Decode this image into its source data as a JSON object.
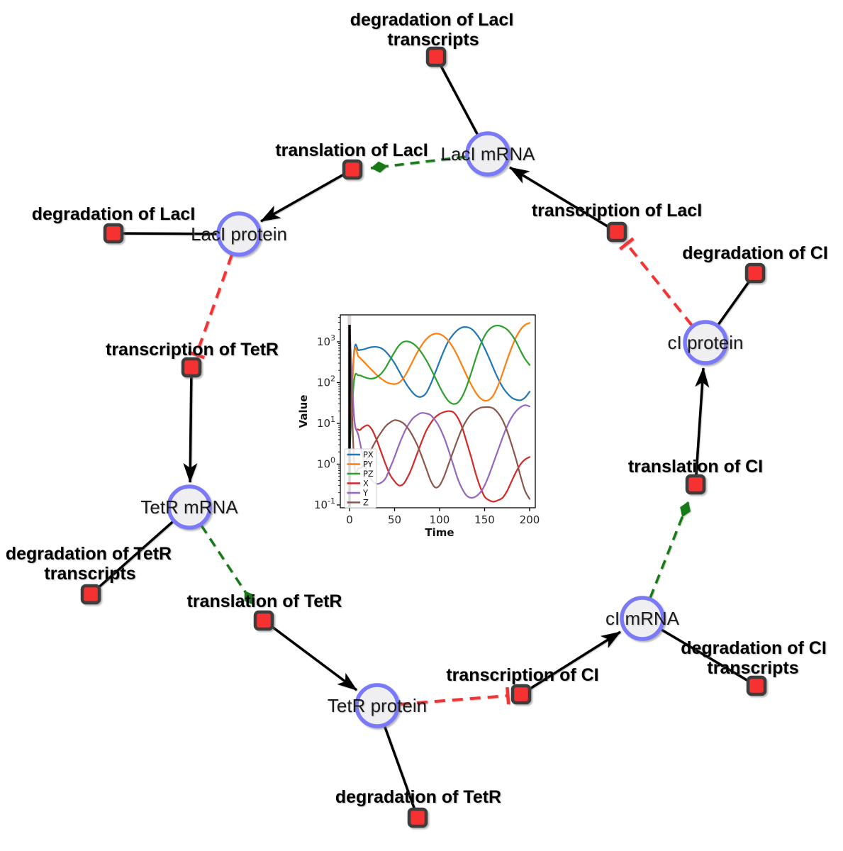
{
  "diagram": {
    "species": [
      {
        "id": "laci-mrna",
        "label": "LacI mRNA"
      },
      {
        "id": "laci-protein",
        "label": "LacI protein"
      },
      {
        "id": "ci-protein",
        "label": "cI protein"
      },
      {
        "id": "tetr-mrna",
        "label": "TetR mRNA"
      },
      {
        "id": "tetr-protein",
        "label": "TetR protein"
      },
      {
        "id": "ci-mrna",
        "label": "cI mRNA"
      }
    ],
    "reactions": [
      {
        "id": "degradation-laci-transcripts",
        "label_lines": [
          "degradation of LacI",
          "transcripts"
        ]
      },
      {
        "id": "translation-laci",
        "label_lines": [
          "translation of LacI"
        ]
      },
      {
        "id": "degradation-laci",
        "label_lines": [
          "degradation of LacI"
        ]
      },
      {
        "id": "transcription-laci",
        "label_lines": [
          "transcription of LacI"
        ]
      },
      {
        "id": "degradation-ci",
        "label_lines": [
          "degradation of CI"
        ]
      },
      {
        "id": "transcription-tetr",
        "label_lines": [
          "transcription of TetR"
        ]
      },
      {
        "id": "degradation-tetr-transcripts",
        "label_lines": [
          "degradation of TetR",
          "transcripts"
        ]
      },
      {
        "id": "translation-tetr",
        "label_lines": [
          "translation of TetR"
        ]
      },
      {
        "id": "degradation-tetr",
        "label_lines": [
          "degradation of TetR"
        ]
      },
      {
        "id": "transcription-ci",
        "label_lines": [
          "transcription of CI"
        ]
      },
      {
        "id": "degradation-ci-transcripts",
        "label_lines": [
          "degradation of CI",
          "transcripts"
        ]
      },
      {
        "id": "translation-ci",
        "label_lines": [
          "translation of CI"
        ]
      }
    ],
    "colors": {
      "species_fill": "#efeff1",
      "species_stroke": "#7a7af8",
      "reaction_fill": "#f53131",
      "reaction_stroke": "#3d3d3d",
      "product_edge": "#000000",
      "modifier_edge": "#177a17",
      "inhibition_edge": "#f63333"
    }
  },
  "chart_data": {
    "type": "line",
    "title": "",
    "xlabel": "Time",
    "ylabel": "Value",
    "y_scale": "log",
    "x_ticks": [
      0,
      50,
      100,
      150,
      200
    ],
    "y_tick_exponents": [
      -1,
      0,
      1,
      2,
      3
    ],
    "xlim": [
      -10,
      206
    ],
    "ylim": [
      0.085,
      3900
    ],
    "grid": false,
    "legend_position": "lower left",
    "t0_marker_line": true,
    "x": [
      0,
      5,
      10,
      15,
      20,
      25,
      30,
      35,
      40,
      45,
      50,
      55,
      60,
      65,
      70,
      75,
      80,
      85,
      90,
      95,
      100,
      105,
      110,
      115,
      120,
      125,
      130,
      135,
      140,
      145,
      150,
      155,
      160,
      165,
      170,
      175,
      180,
      185,
      190,
      195,
      200
    ],
    "series": [
      {
        "name": "PX",
        "color": "#1f77b4",
        "values": [
          2,
          550,
          620,
          650,
          700,
          745,
          750,
          700,
          580,
          430,
          300,
          190,
          120,
          80,
          57,
          46,
          45,
          55,
          90,
          170,
          330,
          620,
          1050,
          1500,
          1950,
          2250,
          2300,
          2100,
          1650,
          1150,
          700,
          400,
          220,
          125,
          78,
          55,
          43,
          38,
          37,
          43,
          60
        ]
      },
      {
        "name": "PY",
        "color": "#ff7f0e",
        "values": [
          2,
          480,
          430,
          340,
          260,
          200,
          155,
          125,
          105,
          95,
          92,
          100,
          130,
          200,
          330,
          540,
          820,
          1150,
          1430,
          1580,
          1550,
          1350,
          1050,
          720,
          450,
          260,
          150,
          90,
          58,
          42,
          36,
          38,
          50,
          85,
          170,
          360,
          720,
          1300,
          2000,
          2600,
          2900
        ]
      },
      {
        "name": "PZ",
        "color": "#2ca02c",
        "values": [
          2,
          110,
          150,
          140,
          128,
          125,
          135,
          165,
          230,
          360,
          560,
          820,
          1000,
          1020,
          920,
          740,
          540,
          360,
          225,
          135,
          80,
          50,
          35,
          30,
          32,
          45,
          80,
          170,
          380,
          800,
          1400,
          2000,
          2400,
          2500,
          2350,
          2000,
          1500,
          1000,
          600,
          380,
          270
        ]
      },
      {
        "name": "X",
        "color": "#d62728",
        "values": [
          2500,
          14,
          7,
          8,
          9,
          7,
          4,
          2,
          1,
          0.55,
          0.38,
          0.3,
          0.33,
          0.5,
          0.9,
          1.8,
          3.5,
          6.5,
          10,
          14,
          17,
          19,
          20,
          19,
          14,
          8,
          3.5,
          1.5,
          0.6,
          0.28,
          0.16,
          0.13,
          0.12,
          0.13,
          0.15,
          0.22,
          0.38,
          0.65,
          1.0,
          1.3,
          1.5
        ]
      },
      {
        "name": "Y",
        "color": "#9467bd",
        "values": [
          2500,
          15,
          5,
          1.5,
          0.6,
          0.4,
          0.33,
          0.35,
          0.45,
          0.8,
          1.5,
          3,
          5.5,
          9,
          13,
          16,
          18,
          17.5,
          16,
          12,
          8,
          4.5,
          2.2,
          1.0,
          0.45,
          0.25,
          0.17,
          0.15,
          0.16,
          0.2,
          0.3,
          0.55,
          1.1,
          2.2,
          4.5,
          8.5,
          14,
          20,
          25,
          28,
          26
        ]
      },
      {
        "name": "Z",
        "color": "#8c564b",
        "values": [
          2500,
          1.2,
          0.8,
          0.9,
          1.4,
          2.5,
          4,
          6,
          8.5,
          10.5,
          12,
          11.5,
          10,
          7.5,
          5,
          3,
          1.6,
          0.8,
          0.4,
          0.27,
          0.3,
          0.5,
          1.0,
          2,
          4,
          7.5,
          12,
          17,
          21,
          24,
          25,
          25,
          23,
          18,
          12,
          6.5,
          3,
          1.3,
          0.5,
          0.22,
          0.14
        ]
      }
    ]
  }
}
